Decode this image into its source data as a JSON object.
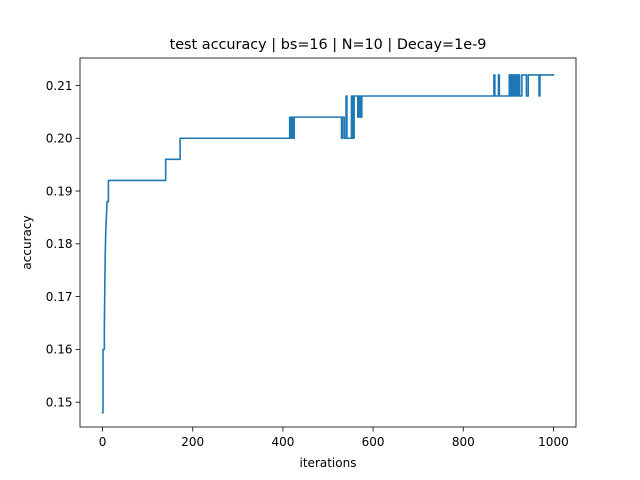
{
  "chart_data": {
    "type": "line",
    "title": "test accuracy | bs=16 | N=10 | Decay=1e-9",
    "xlabel": "iterations",
    "ylabel": "accuracy",
    "xlim": [
      -50,
      1050
    ],
    "ylim": [
      0.1453,
      0.2152
    ],
    "xticks": [
      0,
      200,
      400,
      600,
      800,
      1000
    ],
    "xtick_labels": [
      "0",
      "200",
      "400",
      "600",
      "800",
      "1000"
    ],
    "yticks": [
      0.15,
      0.16,
      0.17,
      0.18,
      0.19,
      0.2,
      0.21
    ],
    "ytick_labels": [
      "0.15",
      "0.16",
      "0.17",
      "0.18",
      "0.19",
      "0.20",
      "0.21"
    ],
    "grid": false,
    "series": [
      {
        "color": "#1f77b4",
        "x": [
          0,
          1,
          1,
          4,
          4,
          5,
          6,
          7,
          8,
          10,
          10,
          13,
          13,
          15,
          15,
          140,
          140,
          172,
          172,
          174,
          174,
          415,
          415,
          417,
          417,
          420,
          420,
          423,
          423,
          425,
          425,
          530,
          530,
          532,
          532,
          536,
          536,
          540,
          540,
          542,
          542,
          552,
          552,
          555,
          555,
          558,
          558,
          566,
          566,
          569,
          569,
          572,
          572,
          575,
          575,
          578,
          578,
          868,
          868,
          870,
          870,
          878,
          878,
          880,
          880,
          902,
          902,
          904,
          904,
          906,
          906,
          909,
          909,
          912,
          912,
          915,
          915,
          918,
          918,
          920,
          920,
          922,
          922,
          925,
          925,
          930,
          930,
          940,
          940,
          944,
          944,
          948,
          948,
          968,
          968,
          970,
          970,
          1000
        ],
        "y": [
          0.148,
          0.148,
          0.16,
          0.16,
          0.164,
          0.172,
          0.178,
          0.182,
          0.184,
          0.188,
          0.188,
          0.188,
          0.192,
          0.192,
          0.192,
          0.192,
          0.196,
          0.196,
          0.2,
          0.2,
          0.2,
          0.2,
          0.204,
          0.204,
          0.2,
          0.2,
          0.204,
          0.204,
          0.2,
          0.2,
          0.204,
          0.204,
          0.2,
          0.2,
          0.204,
          0.204,
          0.2,
          0.2,
          0.208,
          0.208,
          0.2,
          0.2,
          0.208,
          0.208,
          0.2,
          0.2,
          0.208,
          0.208,
          0.204,
          0.204,
          0.208,
          0.208,
          0.204,
          0.204,
          0.208,
          0.208,
          0.208,
          0.208,
          0.212,
          0.212,
          0.208,
          0.208,
          0.212,
          0.212,
          0.208,
          0.208,
          0.212,
          0.212,
          0.208,
          0.208,
          0.212,
          0.212,
          0.208,
          0.208,
          0.212,
          0.212,
          0.208,
          0.208,
          0.212,
          0.212,
          0.208,
          0.208,
          0.212,
          0.212,
          0.208,
          0.208,
          0.212,
          0.212,
          0.208,
          0.208,
          0.212,
          0.212,
          0.212,
          0.212,
          0.208,
          0.208,
          0.212,
          0.212
        ]
      }
    ]
  }
}
